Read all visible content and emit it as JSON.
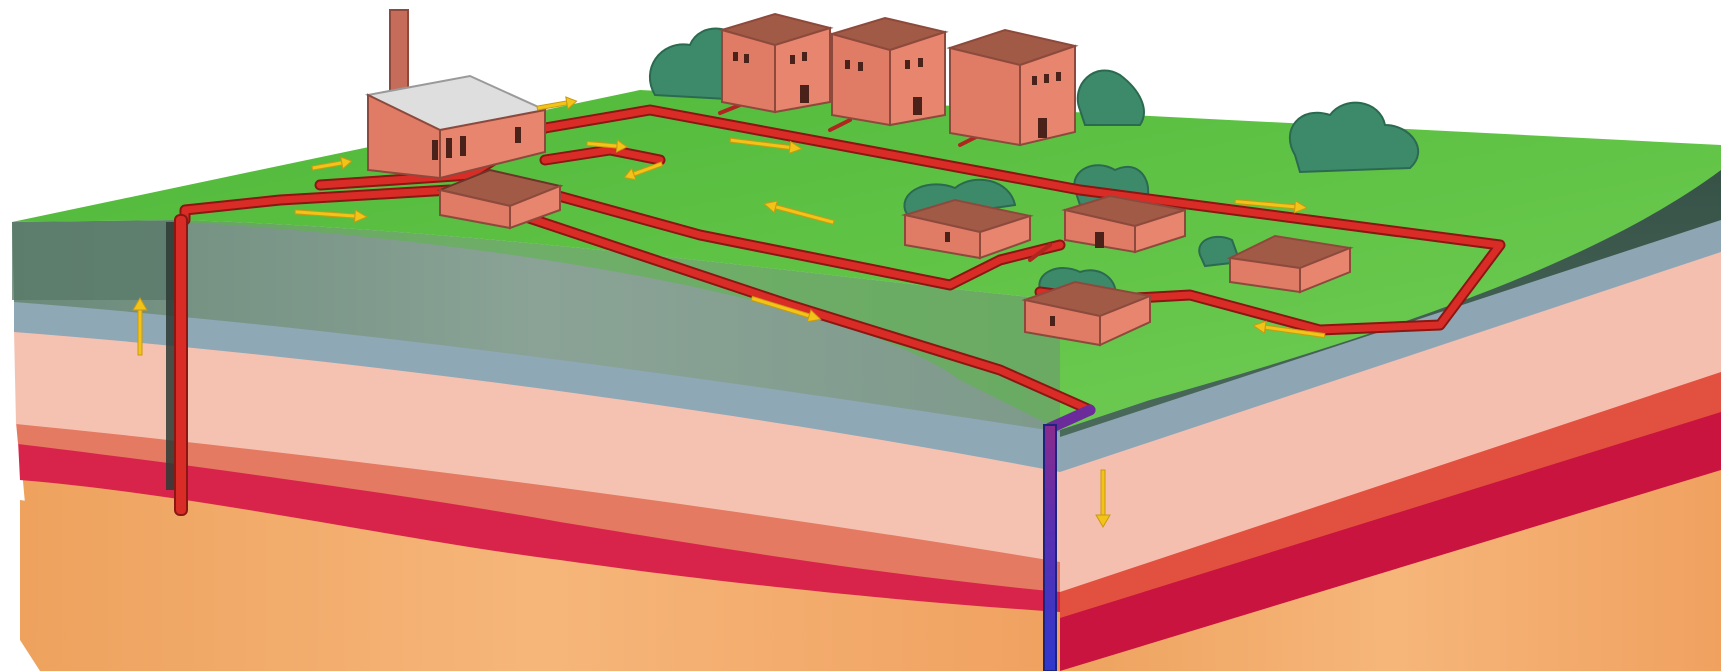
{
  "illustration": {
    "subject": "geothermal-district-heating",
    "colors": {
      "ground_surface": "#5cc142",
      "ground_edge_dark": "#3c6e4a",
      "sediment_green": "#7f9c8d",
      "aquifer_blue": "#8ea6b3",
      "rock_pink": "#f5c0b1",
      "rock_orange": "#e88667",
      "magma_red": "#d8244b",
      "bedrock_sand": "#f1a25c",
      "pipe_hot": "#d92c27",
      "pipe_cold": "#3138c8",
      "flow_arrow": "#f2c318",
      "building_wall": "#e8806a",
      "roof": "#a15a46",
      "plant_roof": "#dcdcdc",
      "tree": "#3d8a6b"
    },
    "icons": [
      "up-arrow-icon",
      "down-arrow-icon",
      "flow-arrow-icon"
    ]
  }
}
